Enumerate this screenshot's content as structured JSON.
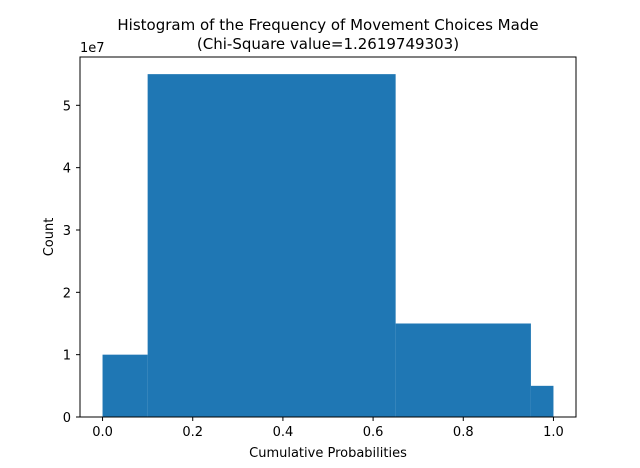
{
  "chart_data": {
    "type": "bar",
    "title_line1": "Histogram of the Frequency of Movement Choices Made",
    "title_line2": "(Chi-Square value=1.2619749303)",
    "xlabel": "Cumulative Probabilities",
    "ylabel": "Count",
    "y_offset_label": "1e7",
    "xlim": [
      -0.05,
      1.05
    ],
    "ylim": [
      0,
      5.775
    ],
    "x_ticks": [
      0.0,
      0.2,
      0.4,
      0.6,
      0.8,
      1.0
    ],
    "x_tick_labels": [
      "0.0",
      "0.2",
      "0.4",
      "0.6",
      "0.8",
      "1.0"
    ],
    "y_ticks": [
      0,
      1,
      2,
      3,
      4,
      5
    ],
    "y_tick_labels": [
      "0",
      "1",
      "2",
      "3",
      "4",
      "5"
    ],
    "bins": [
      {
        "x0": 0.0,
        "x1": 0.1,
        "value": 1.0
      },
      {
        "x0": 0.1,
        "x1": 0.65,
        "value": 5.5
      },
      {
        "x0": 0.65,
        "x1": 0.95,
        "value": 1.5
      },
      {
        "x0": 0.95,
        "x1": 1.0,
        "value": 0.5
      }
    ],
    "bar_color": "#1f77b4",
    "grid": false,
    "legend": "none"
  }
}
